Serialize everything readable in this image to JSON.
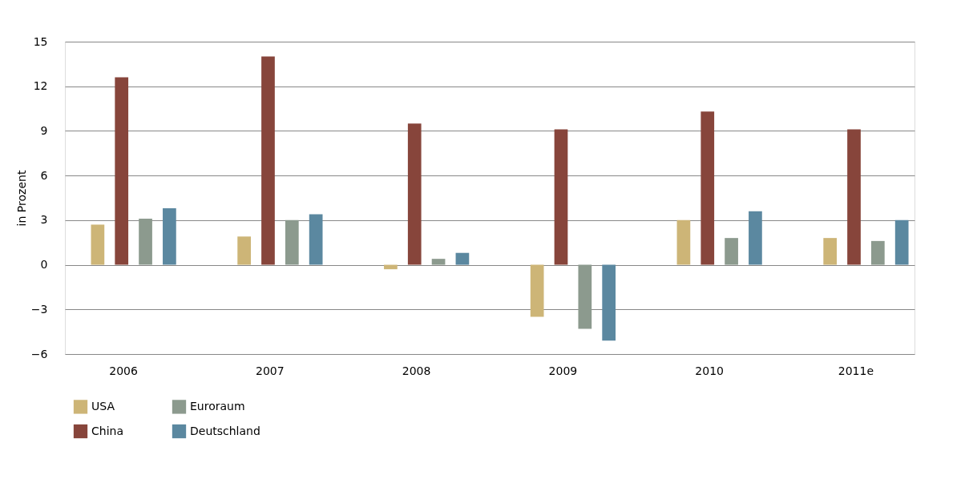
{
  "chart_data": {
    "type": "bar",
    "ylabel": "in Prozent",
    "categories": [
      "2006",
      "2007",
      "2008",
      "2009",
      "2010",
      "2011e"
    ],
    "series": [
      {
        "name": "USA",
        "color": "#cdb577",
        "values": [
          2.7,
          1.9,
          -0.3,
          -3.5,
          3.0,
          1.8
        ]
      },
      {
        "name": "China",
        "color": "#87453b",
        "values": [
          12.6,
          14.0,
          9.5,
          9.1,
          10.3,
          9.1
        ]
      },
      {
        "name": "Euroraum",
        "color": "#8c9a8e",
        "values": [
          3.1,
          3.0,
          0.4,
          -4.3,
          1.8,
          1.6
        ]
      },
      {
        "name": "Deutschland",
        "color": "#5b88a0",
        "values": [
          3.8,
          3.4,
          0.8,
          -5.1,
          3.6,
          3.0
        ]
      }
    ],
    "ylim": [
      -6,
      15
    ],
    "yticks": [
      -6,
      -3,
      0,
      3,
      6,
      9,
      12,
      15
    ],
    "grid": "y",
    "legend": "bottom"
  }
}
